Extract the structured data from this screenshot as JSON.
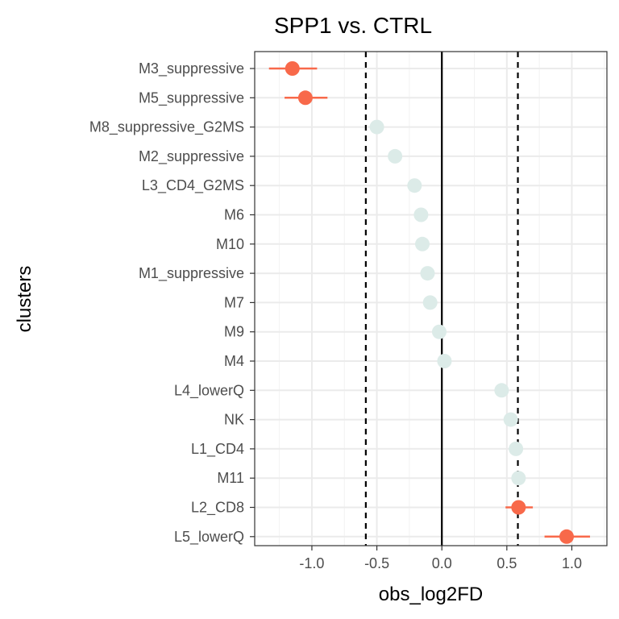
{
  "chart_data": {
    "type": "scatter",
    "title": "SPP1 vs. CTRL",
    "xlabel": "obs_log2FD",
    "ylabel": "clusters",
    "xlim": [
      -1.44,
      1.27
    ],
    "xticks": [
      -1.0,
      -0.5,
      0.0,
      0.5,
      1.0
    ],
    "xtick_labels": [
      "-1.0",
      "-0.5",
      "0.0",
      "0.5",
      "1.0"
    ],
    "grid": true,
    "legend": "none",
    "reference_lines": {
      "solid": 0.0,
      "dashed": [
        -0.585,
        0.585
      ]
    },
    "colors": {
      "significant": "#f8694a",
      "not_significant": "#dcebe8"
    },
    "categories": [
      "M3_suppressive",
      "M5_suppressive",
      "M8_suppressive_G2MS",
      "M2_suppressive",
      "L3_CD4_G2MS",
      "M6",
      "M10",
      "M1_suppressive",
      "M7",
      "M9",
      "M4",
      "L4_lowerQ",
      "NK",
      "L1_CD4",
      "M11",
      "L2_CD8",
      "L5_lowerQ"
    ],
    "points": [
      {
        "cluster": "M3_suppressive",
        "x": -1.15,
        "lo": -1.33,
        "hi": -0.96,
        "significant": true
      },
      {
        "cluster": "M5_suppressive",
        "x": -1.05,
        "lo": -1.21,
        "hi": -0.88,
        "significant": true
      },
      {
        "cluster": "M8_suppressive_G2MS",
        "x": -0.5,
        "lo": -0.52,
        "hi": -0.48,
        "significant": false
      },
      {
        "cluster": "M2_suppressive",
        "x": -0.36,
        "lo": -0.38,
        "hi": -0.34,
        "significant": false
      },
      {
        "cluster": "L3_CD4_G2MS",
        "x": -0.21,
        "lo": -0.23,
        "hi": -0.19,
        "significant": false
      },
      {
        "cluster": "M6",
        "x": -0.16,
        "lo": -0.18,
        "hi": -0.14,
        "significant": false
      },
      {
        "cluster": "M10",
        "x": -0.15,
        "lo": -0.17,
        "hi": -0.13,
        "significant": false
      },
      {
        "cluster": "M1_suppressive",
        "x": -0.11,
        "lo": -0.13,
        "hi": -0.09,
        "significant": false
      },
      {
        "cluster": "M7",
        "x": -0.09,
        "lo": -0.11,
        "hi": -0.07,
        "significant": false
      },
      {
        "cluster": "M9",
        "x": -0.02,
        "lo": -0.04,
        "hi": 0.0,
        "significant": false
      },
      {
        "cluster": "M4",
        "x": 0.02,
        "lo": 0.0,
        "hi": 0.04,
        "significant": false
      },
      {
        "cluster": "L4_lowerQ",
        "x": 0.46,
        "lo": 0.44,
        "hi": 0.48,
        "significant": false
      },
      {
        "cluster": "NK",
        "x": 0.53,
        "lo": 0.51,
        "hi": 0.55,
        "significant": false
      },
      {
        "cluster": "L1_CD4",
        "x": 0.57,
        "lo": 0.55,
        "hi": 0.59,
        "significant": false
      },
      {
        "cluster": "M11",
        "x": 0.59,
        "lo": 0.57,
        "hi": 0.61,
        "significant": false
      },
      {
        "cluster": "L2_CD8",
        "x": 0.59,
        "lo": 0.49,
        "hi": 0.7,
        "significant": true
      },
      {
        "cluster": "L5_lowerQ",
        "x": 0.96,
        "lo": 0.79,
        "hi": 1.14,
        "significant": true
      }
    ]
  }
}
